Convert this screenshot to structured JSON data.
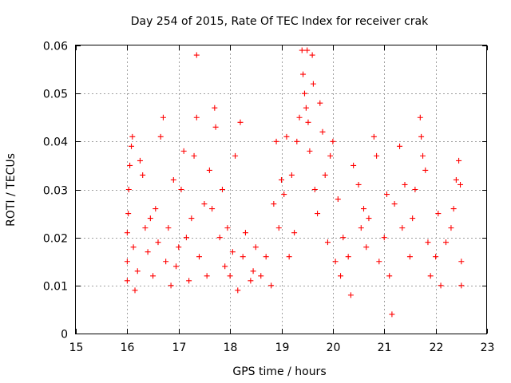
{
  "chart_data": {
    "type": "scatter",
    "title": "Day 254 of 2015, Rate Of TEC Index for receiver crak",
    "xlabel": "GPS time / hours",
    "ylabel": "ROTI / TECUs",
    "xlim": [
      15,
      23
    ],
    "ylim": [
      0,
      0.06
    ],
    "x_ticks": [
      "15",
      "16",
      "17",
      "18",
      "19",
      "20",
      "21",
      "22",
      "23"
    ],
    "y_ticks": [
      "0",
      "0.01",
      "0.02",
      "0.03",
      "0.04",
      "0.05",
      "0.06"
    ],
    "grid": true,
    "marker": "+",
    "series": [
      {
        "name": "ROTI",
        "color": "#ff0000",
        "points": [
          [
            16.0,
            0.011
          ],
          [
            16.0,
            0.015
          ],
          [
            16.0,
            0.021
          ],
          [
            16.02,
            0.025
          ],
          [
            16.03,
            0.03
          ],
          [
            16.05,
            0.035
          ],
          [
            16.08,
            0.039
          ],
          [
            16.1,
            0.041
          ],
          [
            16.12,
            0.018
          ],
          [
            16.15,
            0.009
          ],
          [
            16.2,
            0.013
          ],
          [
            16.25,
            0.036
          ],
          [
            16.3,
            0.033
          ],
          [
            16.35,
            0.022
          ],
          [
            16.4,
            0.017
          ],
          [
            16.45,
            0.024
          ],
          [
            16.5,
            0.012
          ],
          [
            16.55,
            0.026
          ],
          [
            16.6,
            0.019
          ],
          [
            16.65,
            0.041
          ],
          [
            16.7,
            0.045
          ],
          [
            16.75,
            0.015
          ],
          [
            16.8,
            0.022
          ],
          [
            16.85,
            0.01
          ],
          [
            16.9,
            0.032
          ],
          [
            16.95,
            0.014
          ],
          [
            17.0,
            0.018
          ],
          [
            17.05,
            0.03
          ],
          [
            17.1,
            0.038
          ],
          [
            17.15,
            0.02
          ],
          [
            17.2,
            0.011
          ],
          [
            17.25,
            0.024
          ],
          [
            17.3,
            0.037
          ],
          [
            17.35,
            0.058
          ],
          [
            17.35,
            0.045
          ],
          [
            17.4,
            0.016
          ],
          [
            17.5,
            0.027
          ],
          [
            17.55,
            0.012
          ],
          [
            17.6,
            0.034
          ],
          [
            17.65,
            0.026
          ],
          [
            17.7,
            0.047
          ],
          [
            17.72,
            0.043
          ],
          [
            17.8,
            0.02
          ],
          [
            17.85,
            0.03
          ],
          [
            17.9,
            0.014
          ],
          [
            17.95,
            0.022
          ],
          [
            18.0,
            0.012
          ],
          [
            18.05,
            0.017
          ],
          [
            18.1,
            0.037
          ],
          [
            18.15,
            0.009
          ],
          [
            18.2,
            0.044
          ],
          [
            18.25,
            0.016
          ],
          [
            18.3,
            0.021
          ],
          [
            18.4,
            0.011
          ],
          [
            18.45,
            0.013
          ],
          [
            18.5,
            0.018
          ],
          [
            18.6,
            0.012
          ],
          [
            18.7,
            0.016
          ],
          [
            18.8,
            0.01
          ],
          [
            18.85,
            0.027
          ],
          [
            18.9,
            0.04
          ],
          [
            18.95,
            0.022
          ],
          [
            19.0,
            0.032
          ],
          [
            19.05,
            0.029
          ],
          [
            19.1,
            0.041
          ],
          [
            19.15,
            0.016
          ],
          [
            19.2,
            0.033
          ],
          [
            19.25,
            0.021
          ],
          [
            19.3,
            0.04
          ],
          [
            19.35,
            0.045
          ],
          [
            19.4,
            0.059
          ],
          [
            19.42,
            0.054
          ],
          [
            19.45,
            0.05
          ],
          [
            19.48,
            0.047
          ],
          [
            19.5,
            0.059
          ],
          [
            19.52,
            0.044
          ],
          [
            19.55,
            0.038
          ],
          [
            19.6,
            0.058
          ],
          [
            19.62,
            0.052
          ],
          [
            19.65,
            0.03
          ],
          [
            19.7,
            0.025
          ],
          [
            19.75,
            0.048
          ],
          [
            19.8,
            0.042
          ],
          [
            19.85,
            0.033
          ],
          [
            19.9,
            0.019
          ],
          [
            19.95,
            0.037
          ],
          [
            20.0,
            0.04
          ],
          [
            20.05,
            0.015
          ],
          [
            20.1,
            0.028
          ],
          [
            20.15,
            0.012
          ],
          [
            20.2,
            0.02
          ],
          [
            20.3,
            0.016
          ],
          [
            20.35,
            0.008
          ],
          [
            20.4,
            0.035
          ],
          [
            20.5,
            0.031
          ],
          [
            20.55,
            0.022
          ],
          [
            20.6,
            0.026
          ],
          [
            20.65,
            0.018
          ],
          [
            20.7,
            0.024
          ],
          [
            20.8,
            0.041
          ],
          [
            20.85,
            0.037
          ],
          [
            20.9,
            0.015
          ],
          [
            21.0,
            0.02
          ],
          [
            21.05,
            0.029
          ],
          [
            21.1,
            0.012
          ],
          [
            21.15,
            0.004
          ],
          [
            21.2,
            0.027
          ],
          [
            21.3,
            0.039
          ],
          [
            21.35,
            0.022
          ],
          [
            21.4,
            0.031
          ],
          [
            21.5,
            0.016
          ],
          [
            21.55,
            0.024
          ],
          [
            21.6,
            0.03
          ],
          [
            21.7,
            0.045
          ],
          [
            21.72,
            0.041
          ],
          [
            21.75,
            0.037
          ],
          [
            21.8,
            0.034
          ],
          [
            21.85,
            0.019
          ],
          [
            21.9,
            0.012
          ],
          [
            22.0,
            0.016
          ],
          [
            22.05,
            0.025
          ],
          [
            22.1,
            0.01
          ],
          [
            22.2,
            0.019
          ],
          [
            22.3,
            0.022
          ],
          [
            22.35,
            0.026
          ],
          [
            22.4,
            0.032
          ],
          [
            22.45,
            0.036
          ],
          [
            22.48,
            0.031
          ],
          [
            22.5,
            0.015
          ],
          [
            22.5,
            0.01
          ]
        ]
      }
    ]
  }
}
